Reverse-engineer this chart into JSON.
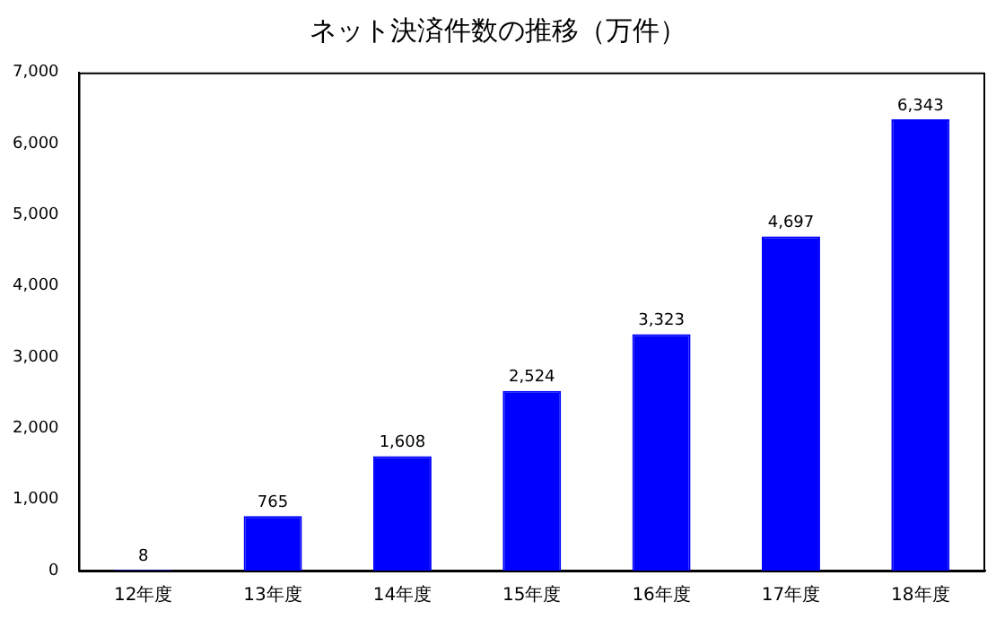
{
  "chart_data": {
    "type": "bar",
    "title": "ネット決済件数の推移（万件）",
    "categories": [
      "12年度",
      "13年度",
      "14年度",
      "15年度",
      "16年度",
      "17年度",
      "18年度"
    ],
    "values": [
      8,
      765,
      1608,
      2524,
      3323,
      4697,
      6343
    ],
    "value_labels": [
      "8",
      "765",
      "1,608",
      "2,524",
      "3,323",
      "4,697",
      "6,343"
    ],
    "color": "#0000ff",
    "ylim": [
      0,
      7000
    ],
    "yticks": [
      {
        "value": 0,
        "label": "0"
      },
      {
        "value": 1000,
        "label": "1,000"
      },
      {
        "value": 2000,
        "label": "2,000"
      },
      {
        "value": 3000,
        "label": "3,000"
      },
      {
        "value": 4000,
        "label": "4,000"
      },
      {
        "value": 5000,
        "label": "5,000"
      },
      {
        "value": 6000,
        "label": "6,000"
      },
      {
        "value": 7000,
        "label": "7,000"
      }
    ],
    "grid": false,
    "legend": false
  }
}
